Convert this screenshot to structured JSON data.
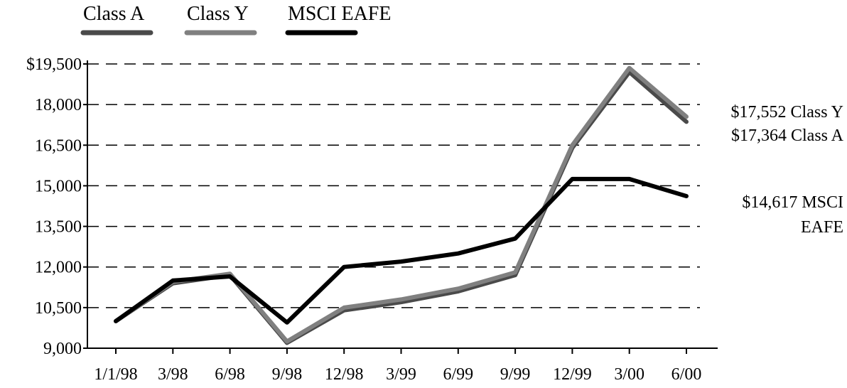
{
  "chart_data": {
    "type": "line",
    "categories": [
      "1/1/98",
      "3/98",
      "6/98",
      "9/98",
      "12/98",
      "3/99",
      "6/99",
      "9/99",
      "12/99",
      "3/00",
      "6/00"
    ],
    "ylim": [
      9000,
      19500
    ],
    "yticks": [
      "$19,500",
      "18,000",
      "16,500",
      "15,000",
      "13,500",
      "12,000",
      "10,500",
      "9,000"
    ],
    "ytick_values": [
      19500,
      18000,
      16500,
      15000,
      13500,
      12000,
      10500,
      9000
    ],
    "grid": "horizontal dashed",
    "legend_position": "top-left",
    "series": [
      {
        "name": "Class A",
        "color": "#4a4a4a",
        "values": [
          10000,
          11400,
          11700,
          9200,
          10400,
          10700,
          11100,
          11700,
          16400,
          19200,
          17364
        ]
      },
      {
        "name": "Class Y",
        "color": "#808080",
        "values": [
          10000,
          11450,
          11750,
          9250,
          10500,
          10800,
          11200,
          11800,
          16500,
          19350,
          17552
        ]
      },
      {
        "name": "MSCI EAFE",
        "color": "#000000",
        "values": [
          10000,
          11500,
          11650,
          9950,
          12000,
          12200,
          12500,
          13050,
          15250,
          15250,
          14617
        ]
      }
    ],
    "annotations": [
      {
        "lines": [
          "$17,552 Class Y"
        ]
      },
      {
        "lines": [
          "$17,364 Class A"
        ]
      },
      {
        "lines": [
          "$14,617 MSCI",
          "EAFE"
        ]
      }
    ]
  }
}
